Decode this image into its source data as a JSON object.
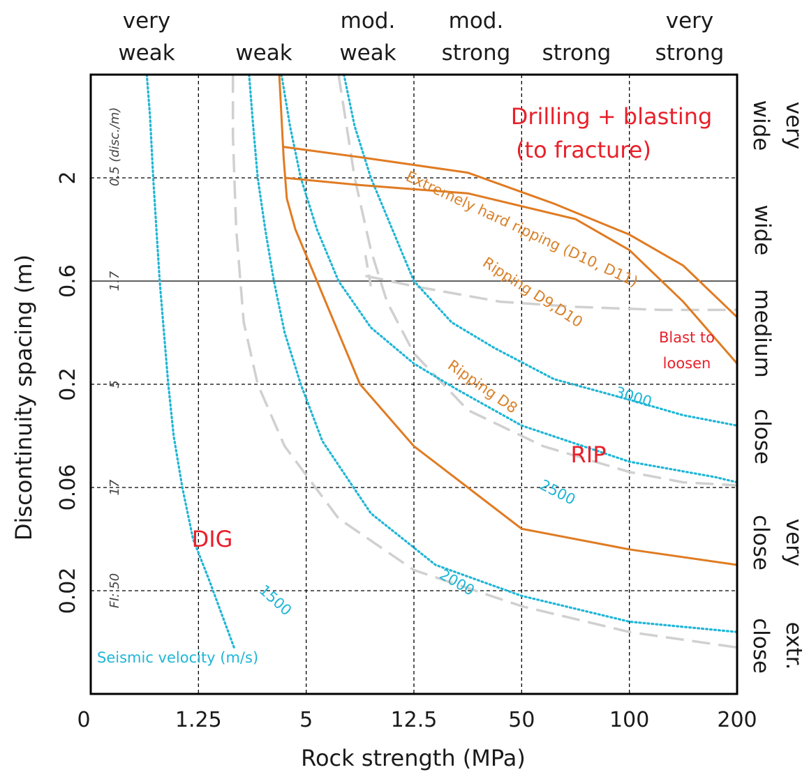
{
  "chart_data": {
    "type": "line",
    "title": "",
    "xlabel": "Rock strength (MPa)",
    "ylabel": "Discontinuity spacing (m)",
    "x_ticks": [
      "0",
      "1.25",
      "5",
      "12.5",
      "50",
      "100",
      "200"
    ],
    "y_ticks": [
      "2",
      "0.6",
      "0.2",
      "0.06",
      "0.02"
    ],
    "fi_ticks": [
      "0.5 (disc./m)",
      "1.7",
      "5",
      "17",
      "FI: 50"
    ],
    "strength_classes": [
      "very\nweak",
      "weak",
      "mod.\nweak",
      "mod.\nstrong",
      "strong",
      "very\nstrong"
    ],
    "spacing_classes": [
      "very\nwide",
      "wide",
      "medium",
      "close",
      "very\nclose",
      "extr.\nclose"
    ],
    "zones": {
      "drilling": [
        "Drilling + blasting",
        "(to fracture)"
      ],
      "blast": [
        "Blast to",
        "loosen"
      ],
      "rip": "RIP",
      "dig": "DIG"
    },
    "boundary_labels": {
      "extremely_hard": "Extremely hard ripping (D10, D11)",
      "ripping_d9": "Ripping D9,D10",
      "ripping_d8": "Ripping D8"
    },
    "seismic_title": "Seismic velocity (m/s)",
    "series": [
      {
        "name": "1500",
        "kind": "seismic",
        "color": "#1fb6d6",
        "points": [
          [
            0.52,
            3.0
          ],
          [
            0.55,
            2.6
          ],
          [
            0.58,
            2.0
          ],
          [
            0.61,
            1.5
          ],
          [
            0.64,
            1.0
          ],
          [
            0.68,
            0.5
          ],
          [
            0.72,
            0.0
          ],
          [
            0.77,
            -0.5
          ],
          [
            0.85,
            -1.0
          ],
          [
            0.95,
            -1.5
          ],
          [
            1.1,
            -1.9
          ],
          [
            1.33,
            -2.55
          ]
        ]
      },
      {
        "name": "2000",
        "kind": "seismic",
        "color": "#1fb6d6",
        "points": [
          [
            1.47,
            3.0
          ],
          [
            1.5,
            2.6
          ],
          [
            1.55,
            2.0
          ],
          [
            1.62,
            1.5
          ],
          [
            1.7,
            1.0
          ],
          [
            1.8,
            0.5
          ],
          [
            1.95,
            0.0
          ],
          [
            2.15,
            -0.55
          ],
          [
            2.6,
            -1.25
          ],
          [
            3.2,
            -1.75
          ],
          [
            4.0,
            -2.05
          ],
          [
            5.0,
            -2.3
          ],
          [
            6.0,
            -2.4
          ]
        ]
      },
      {
        "name": "2500",
        "kind": "seismic",
        "color": "#1fb6d6",
        "points": [
          [
            1.77,
            3.0
          ],
          [
            1.85,
            2.5
          ],
          [
            1.95,
            2.0
          ],
          [
            2.1,
            1.5
          ],
          [
            2.3,
            1.0
          ],
          [
            2.6,
            0.55
          ],
          [
            3.0,
            0.2
          ],
          [
            3.4,
            -0.05
          ],
          [
            4.0,
            -0.4
          ],
          [
            5.0,
            -0.75
          ],
          [
            5.8,
            -0.9
          ],
          [
            6.0,
            -0.95
          ]
        ]
      },
      {
        "name": "3000",
        "kind": "seismic",
        "color": "#1fb6d6",
        "points": [
          [
            2.35,
            3.0
          ],
          [
            2.45,
            2.5
          ],
          [
            2.6,
            2.0
          ],
          [
            2.8,
            1.5
          ],
          [
            3.0,
            1.0
          ],
          [
            3.35,
            0.6
          ],
          [
            3.75,
            0.35
          ],
          [
            4.3,
            0.05
          ],
          [
            5.0,
            -0.15
          ],
          [
            5.5,
            -0.3
          ],
          [
            6.0,
            -0.4
          ]
        ]
      },
      {
        "name": "",
        "kind": "grey",
        "color": "#d0d0d0",
        "points": [
          [
            1.32,
            3.0
          ],
          [
            1.32,
            2.4
          ],
          [
            1.35,
            1.5
          ],
          [
            1.42,
            0.6
          ],
          [
            1.55,
            0.0
          ],
          [
            1.8,
            -0.6
          ],
          [
            2.3,
            -1.3
          ],
          [
            3.0,
            -1.8
          ],
          [
            4.0,
            -2.15
          ],
          [
            5.0,
            -2.4
          ],
          [
            6.0,
            -2.55
          ]
        ]
      },
      {
        "name": "",
        "kind": "grey",
        "color": "#d0d0d0",
        "points": [
          [
            2.3,
            3.0
          ],
          [
            2.45,
            2.0
          ],
          [
            2.6,
            1.3
          ],
          [
            2.75,
            0.8
          ],
          [
            3.0,
            0.3
          ],
          [
            3.5,
            -0.25
          ],
          [
            4.2,
            -0.6
          ],
          [
            5.0,
            -0.85
          ],
          [
            5.5,
            -0.95
          ],
          [
            6.0,
            -0.98
          ]
        ]
      },
      {
        "name": "",
        "kind": "grey",
        "color": "#d0d0d0",
        "points": [
          [
            2.55,
            1.05
          ],
          [
            3.0,
            0.95
          ],
          [
            3.8,
            0.8
          ],
          [
            4.5,
            0.75
          ],
          [
            5.3,
            0.72
          ],
          [
            6.0,
            0.72
          ]
        ]
      },
      {
        "name": "",
        "kind": "grey-mid",
        "color": "#d0d0d0",
        "points": [
          [
            2.55,
            1.25
          ],
          [
            2.6,
            0.95
          ]
        ]
      },
      {
        "name": "",
        "kind": "boundary",
        "color": "#e07b22",
        "points": [
          [
            1.75,
            3.0
          ],
          [
            1.79,
            2.2
          ],
          [
            1.82,
            1.8
          ],
          [
            1.9,
            1.5
          ],
          [
            2.1,
            1.0
          ],
          [
            2.5,
            0.0
          ],
          [
            3.0,
            -0.6
          ],
          [
            3.5,
            -1.0
          ],
          [
            4.0,
            -1.4
          ],
          [
            5.0,
            -1.6
          ],
          [
            6.0,
            -1.75
          ]
        ]
      },
      {
        "name": "",
        "kind": "boundary",
        "color": "#e07b22",
        "points": [
          [
            1.8,
            2.0
          ],
          [
            2.5,
            1.93
          ],
          [
            3.5,
            1.85
          ],
          [
            4.5,
            1.6
          ],
          [
            5.0,
            1.3
          ],
          [
            5.5,
            0.8
          ],
          [
            6.0,
            0.2
          ]
        ]
      },
      {
        "name": "",
        "kind": "boundary",
        "color": "#e07b22",
        "points": [
          [
            1.79,
            2.3
          ],
          [
            2.5,
            2.2
          ],
          [
            3.5,
            2.05
          ],
          [
            4.3,
            1.75
          ],
          [
            5.0,
            1.45
          ],
          [
            5.5,
            1.15
          ],
          [
            6.0,
            0.65
          ]
        ]
      }
    ],
    "xlim": [
      0,
      6
    ],
    "ylim": [
      -3,
      3
    ]
  }
}
